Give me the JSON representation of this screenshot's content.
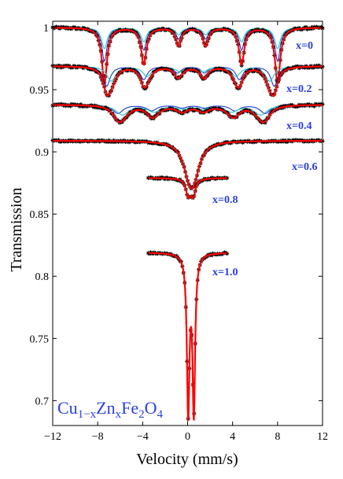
{
  "chart_data": {
    "type": "line",
    "xlabel": "Velocity (mm/s)",
    "ylabel": "Transmission",
    "xlim": [
      -12,
      12
    ],
    "ylim": [
      0.68,
      1.005
    ],
    "xticks": [
      -12,
      -8,
      -4,
      0,
      4,
      8,
      12
    ],
    "yticks": [
      0.7,
      0.75,
      0.8,
      0.85,
      0.9,
      0.95,
      1
    ],
    "ytick_labels": [
      "0.7",
      "0.75",
      "0.8",
      "0.85",
      "0.9",
      "0.95",
      "1"
    ],
    "grid": false,
    "composition": {
      "base": "Cu",
      "sub1": "1−x",
      "el2": "Zn",
      "sub2": "x",
      "el3": "Fe",
      "sub3": "2",
      "el4": "O",
      "sub4": "4"
    },
    "colors": {
      "data": "#000000",
      "fit": "#ff0000",
      "sextet_a": "#1f3bd8",
      "sextet_b": "#29c7c2",
      "doublet": "#000000",
      "labels": "#2a3fe0"
    },
    "series": [
      {
        "name": "x=0",
        "baseline": 1.0,
        "x_range": [
          -12,
          12
        ],
        "sextets": [
          {
            "lines": [
              -7.4,
              -3.9,
              -0.8,
              1.6,
              4.8,
              8.0
            ],
            "depth": 0.027,
            "width": 0.55,
            "ratio": [
              3,
              2,
              1,
              1,
              2,
              3
            ],
            "color": "sextet_a"
          },
          {
            "lines": [
              -7.4,
              -3.9,
              -0.8,
              1.6,
              4.8,
              8.0
            ],
            "depth": 0.017,
            "width": 0.6,
            "ratio": [
              3,
              2,
              1,
              1,
              2,
              3
            ],
            "color": "sextet_b"
          }
        ]
      },
      {
        "name": "x=0.2",
        "baseline": 0.969,
        "x_range": [
          -12,
          12
        ],
        "sextets": [
          {
            "lines": [
              -7.2,
              -3.9,
              -0.9,
              1.5,
              4.6,
              7.7
            ],
            "depth": 0.016,
            "width": 0.75,
            "ratio": [
              3,
              2,
              1,
              1,
              2,
              3
            ],
            "color": "sextet_a"
          },
          {
            "lines": [
              -6.8,
              -3.6,
              -0.7,
              1.4,
              4.3,
              7.3
            ],
            "depth": 0.012,
            "width": 0.95,
            "ratio": [
              3,
              2,
              1,
              1,
              2,
              3
            ],
            "color": "sextet_b"
          }
        ]
      },
      {
        "name": "x=0.4",
        "baseline": 0.938,
        "x_range": [
          -12,
          12
        ],
        "sextets": [
          {
            "lines": [
              -6.2,
              -3.2,
              -0.5,
              1.5,
              4.2,
              6.9
            ],
            "depth": 0.007,
            "width": 1.1,
            "ratio": [
              3,
              2,
              1,
              1,
              2,
              3
            ],
            "color": "sextet_a"
          },
          {
            "lines": [
              -5.8,
              -3.0,
              -0.5,
              1.3,
              3.9,
              6.5
            ],
            "depth": 0.008,
            "width": 1.4,
            "ratio": [
              3,
              2,
              1,
              1,
              2,
              3
            ],
            "color": "sextet_b"
          }
        ]
      },
      {
        "name": "x=0.6",
        "baseline": 0.909,
        "x_range": [
          -12,
          12
        ],
        "doublet": {
          "centers": [
            0.15,
            0.55
          ],
          "depth": 0.021,
          "width": 1.3
        }
      },
      {
        "name": "x=0.8",
        "baseline": 0.879,
        "x_range": [
          -3.5,
          3.5
        ],
        "doublet": {
          "centers": [
            0.05,
            0.5
          ],
          "depth": 0.013,
          "width": 0.5
        }
      },
      {
        "name": "x=1.0",
        "baseline": 0.819,
        "x_range": [
          -3.5,
          3.5
        ],
        "doublet": {
          "centers": [
            0.05,
            0.55
          ],
          "depth": 0.125,
          "width": 0.28
        }
      }
    ]
  }
}
